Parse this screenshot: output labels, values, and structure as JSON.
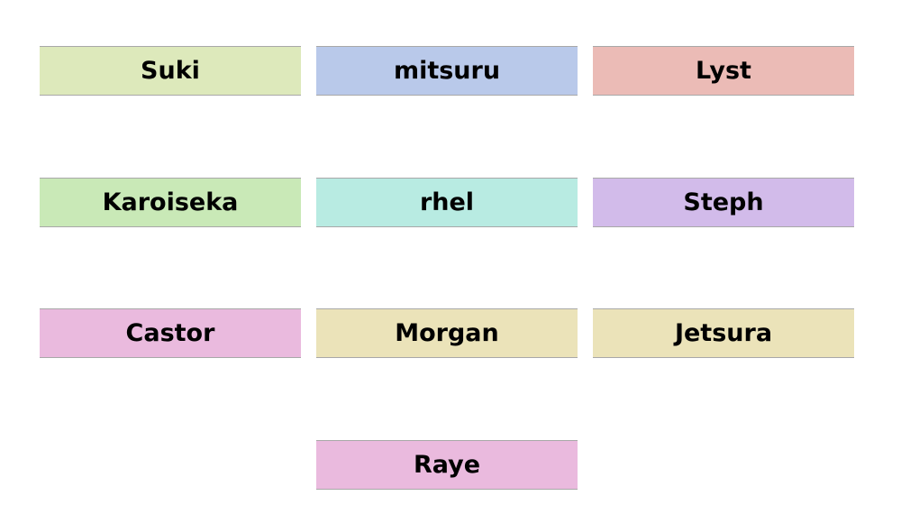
{
  "tiles": [
    {
      "label": "Suki",
      "color": "#dde9bb"
    },
    {
      "label": "mitsuru",
      "color": "#b9c9ea"
    },
    {
      "label": "Lyst",
      "color": "#ebbbb6"
    },
    {
      "label": "Karoiseka",
      "color": "#c9e9b7"
    },
    {
      "label": "rhel",
      "color": "#b8ebe2"
    },
    {
      "label": "Steph",
      "color": "#d2bbea"
    },
    {
      "label": "Castor",
      "color": "#eabade"
    },
    {
      "label": "Morgan",
      "color": "#ebe3b9"
    },
    {
      "label": "Jetsura",
      "color": "#ebe3b9"
    },
    {
      "label": "Raye",
      "color": "#eabade"
    }
  ]
}
